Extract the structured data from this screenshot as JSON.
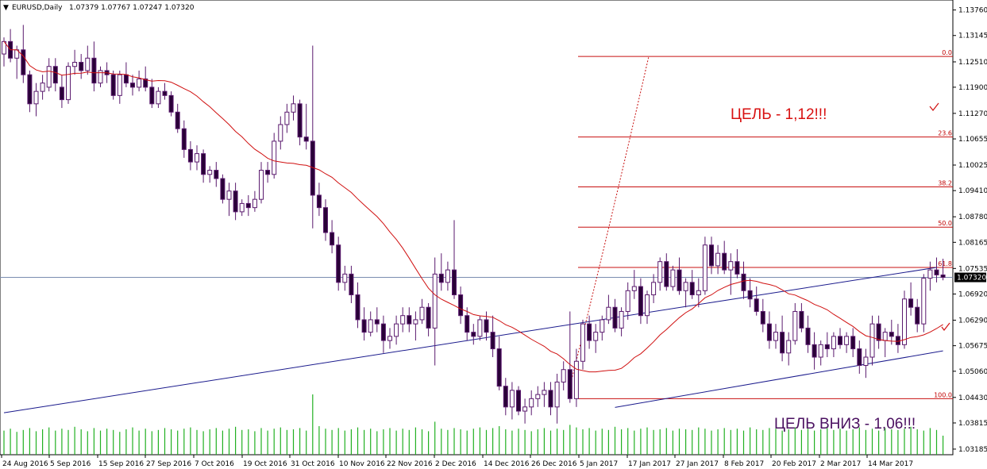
{
  "header": {
    "symbol_label": "EURUSD,Daily",
    "ohlc_label": "1.07379 1.07767 1.07247 1.07320",
    "colors": {
      "bull": "#ffffff",
      "bear": "#2a0038",
      "wick": "#5a1a6e",
      "ma": "#d01010",
      "channel": "#1a1a8c",
      "fib": "#c81010",
      "volume": "#22b022",
      "hline": "#7a8cb0"
    }
  },
  "annotations": {
    "target_up": "ЦЕЛЬ - 1,12!!!",
    "target_down": "ЦЕЛЬ ВНИЗ - 1,06!!!",
    "price_tag": "1.07320"
  },
  "chart_data": {
    "type": "candlestick",
    "title": "EURUSD,Daily",
    "ylim": [
      1.0305,
      1.14
    ],
    "y_ticks": [
      "1.13760",
      "1.13145",
      "1.12510",
      "1.11900",
      "1.11270",
      "1.10655",
      "1.10025",
      "1.09410",
      "1.08780",
      "1.08165",
      "1.07535",
      "1.06920",
      "1.06290",
      "1.05675",
      "1.05060",
      "1.04430",
      "1.03815",
      "1.03185"
    ],
    "x_ticks": [
      "24 Aug 2016",
      "5 Sep 2016",
      "15 Sep 2016",
      "27 Sep 2016",
      "7 Oct 2016",
      "19 Oct 2016",
      "31 Oct 2016",
      "10 Nov 2016",
      "22 Nov 2016",
      "2 Dec 2016",
      "14 Dec 2016",
      "26 Dec 2016",
      "5 Jan 2017",
      "17 Jan 2017",
      "27 Jan 2017",
      "8 Feb 2017",
      "20 Feb 2017",
      "2 Mar 2017",
      "14 Mar 2017"
    ],
    "candles": [
      [
        1.127,
        1.131,
        1.124,
        1.13
      ],
      [
        1.13,
        1.133,
        1.125,
        1.126
      ],
      [
        1.126,
        1.129,
        1.121,
        1.128
      ],
      [
        1.128,
        1.134,
        1.12,
        1.122
      ],
      [
        1.122,
        1.123,
        1.113,
        1.115
      ],
      [
        1.115,
        1.12,
        1.112,
        1.118
      ],
      [
        1.118,
        1.122,
        1.116,
        1.12
      ],
      [
        1.119,
        1.126,
        1.118,
        1.124
      ],
      [
        1.124,
        1.126,
        1.118,
        1.12
      ],
      [
        1.119,
        1.122,
        1.114,
        1.116
      ],
      [
        1.116,
        1.125,
        1.115,
        1.124
      ],
      [
        1.124,
        1.128,
        1.122,
        1.125
      ],
      [
        1.125,
        1.127,
        1.121,
        1.123
      ],
      [
        1.123,
        1.129,
        1.122,
        1.126
      ],
      [
        1.126,
        1.13,
        1.118,
        1.12
      ],
      [
        1.12,
        1.124,
        1.119,
        1.123
      ],
      [
        1.123,
        1.125,
        1.12,
        1.122
      ],
      [
        1.122,
        1.123,
        1.116,
        1.117
      ],
      [
        1.117,
        1.123,
        1.115,
        1.122
      ],
      [
        1.122,
        1.125,
        1.119,
        1.12
      ],
      [
        1.12,
        1.122,
        1.117,
        1.119
      ],
      [
        1.119,
        1.123,
        1.118,
        1.121
      ],
      [
        1.121,
        1.124,
        1.118,
        1.119
      ],
      [
        1.119,
        1.121,
        1.114,
        1.115
      ],
      [
        1.115,
        1.119,
        1.114,
        1.118
      ],
      [
        1.118,
        1.12,
        1.116,
        1.117
      ],
      [
        1.117,
        1.118,
        1.112,
        1.113
      ],
      [
        1.113,
        1.115,
        1.108,
        1.109
      ],
      [
        1.109,
        1.111,
        1.102,
        1.104
      ],
      [
        1.104,
        1.106,
        1.099,
        1.101
      ],
      [
        1.101,
        1.105,
        1.099,
        1.103
      ],
      [
        1.103,
        1.104,
        1.096,
        1.098
      ],
      [
        1.098,
        1.1,
        1.096,
        1.099
      ],
      [
        1.099,
        1.101,
        1.095,
        1.097
      ],
      [
        1.097,
        1.098,
        1.091,
        1.092
      ],
      [
        1.092,
        1.096,
        1.088,
        1.094
      ],
      [
        1.094,
        1.096,
        1.087,
        1.089
      ],
      [
        1.089,
        1.092,
        1.088,
        1.091
      ],
      [
        1.091,
        1.093,
        1.088,
        1.09
      ],
      [
        1.09,
        1.094,
        1.089,
        1.092
      ],
      [
        1.092,
        1.101,
        1.091,
        1.099
      ],
      [
        1.099,
        1.101,
        1.096,
        1.098
      ],
      [
        1.098,
        1.108,
        1.097,
        1.106
      ],
      [
        1.106,
        1.112,
        1.104,
        1.11
      ],
      [
        1.11,
        1.115,
        1.108,
        1.113
      ],
      [
        1.113,
        1.117,
        1.111,
        1.115
      ],
      [
        1.115,
        1.116,
        1.105,
        1.107
      ],
      [
        1.107,
        1.115,
        1.104,
        1.106
      ],
      [
        1.106,
        1.129,
        1.085,
        1.093
      ],
      [
        1.093,
        1.096,
        1.088,
        1.09
      ],
      [
        1.09,
        1.092,
        1.082,
        1.084
      ],
      [
        1.084,
        1.087,
        1.079,
        1.081
      ],
      [
        1.081,
        1.083,
        1.07,
        1.072
      ],
      [
        1.072,
        1.076,
        1.07,
        1.074
      ],
      [
        1.074,
        1.076,
        1.067,
        1.069
      ],
      [
        1.069,
        1.072,
        1.061,
        1.063
      ],
      [
        1.063,
        1.066,
        1.058,
        1.06
      ],
      [
        1.06,
        1.065,
        1.059,
        1.063
      ],
      [
        1.063,
        1.066,
        1.06,
        1.062
      ],
      [
        1.062,
        1.064,
        1.055,
        1.058
      ],
      [
        1.058,
        1.061,
        1.056,
        1.059
      ],
      [
        1.059,
        1.064,
        1.057,
        1.062
      ],
      [
        1.062,
        1.066,
        1.06,
        1.064
      ],
      [
        1.064,
        1.066,
        1.06,
        1.062
      ],
      [
        1.062,
        1.065,
        1.058,
        1.063
      ],
      [
        1.063,
        1.068,
        1.062,
        1.066
      ],
      [
        1.066,
        1.067,
        1.059,
        1.061
      ],
      [
        1.061,
        1.078,
        1.052,
        1.074
      ],
      [
        1.074,
        1.079,
        1.07,
        1.072
      ],
      [
        1.072,
        1.077,
        1.07,
        1.075
      ],
      [
        1.075,
        1.087,
        1.068,
        1.069
      ],
      [
        1.069,
        1.071,
        1.062,
        1.064
      ],
      [
        1.064,
        1.066,
        1.058,
        1.06
      ],
      [
        1.06,
        1.062,
        1.057,
        1.059
      ],
      [
        1.059,
        1.064,
        1.058,
        1.063
      ],
      [
        1.063,
        1.065,
        1.058,
        1.06
      ],
      [
        1.06,
        1.064,
        1.054,
        1.056
      ],
      [
        1.056,
        1.059,
        1.046,
        1.047
      ],
      [
        1.047,
        1.049,
        1.04,
        1.042
      ],
      [
        1.042,
        1.048,
        1.039,
        1.046
      ],
      [
        1.046,
        1.047,
        1.04,
        1.041
      ],
      [
        1.041,
        1.044,
        1.038,
        1.042
      ],
      [
        1.042,
        1.046,
        1.04,
        1.044
      ],
      [
        1.044,
        1.047,
        1.042,
        1.045
      ],
      [
        1.045,
        1.048,
        1.042,
        1.046
      ],
      [
        1.046,
        1.048,
        1.04,
        1.042
      ],
      [
        1.042,
        1.05,
        1.038,
        1.048
      ],
      [
        1.048,
        1.053,
        1.046,
        1.051
      ],
      [
        1.051,
        1.065,
        1.043,
        1.044
      ],
      [
        1.044,
        1.056,
        1.042,
        1.053
      ],
      [
        1.053,
        1.063,
        1.051,
        1.062
      ],
      [
        1.062,
        1.064,
        1.056,
        1.058
      ],
      [
        1.058,
        1.062,
        1.055,
        1.06
      ],
      [
        1.06,
        1.064,
        1.058,
        1.063
      ],
      [
        1.063,
        1.069,
        1.062,
        1.066
      ],
      [
        1.066,
        1.068,
        1.06,
        1.061
      ],
      [
        1.061,
        1.066,
        1.059,
        1.065
      ],
      [
        1.065,
        1.072,
        1.063,
        1.07
      ],
      [
        1.07,
        1.075,
        1.068,
        1.071
      ],
      [
        1.071,
        1.073,
        1.062,
        1.064
      ],
      [
        1.064,
        1.07,
        1.062,
        1.069
      ],
      [
        1.069,
        1.074,
        1.067,
        1.072
      ],
      [
        1.072,
        1.078,
        1.07,
        1.077
      ],
      [
        1.077,
        1.079,
        1.07,
        1.071
      ],
      [
        1.071,
        1.076,
        1.07,
        1.075
      ],
      [
        1.075,
        1.078,
        1.069,
        1.07
      ],
      [
        1.07,
        1.073,
        1.066,
        1.072
      ],
      [
        1.072,
        1.075,
        1.068,
        1.069
      ],
      [
        1.069,
        1.073,
        1.066,
        1.07
      ],
      [
        1.07,
        1.083,
        1.069,
        1.081
      ],
      [
        1.081,
        1.083,
        1.074,
        1.076
      ],
      [
        1.076,
        1.081,
        1.074,
        1.079
      ],
      [
        1.079,
        1.082,
        1.074,
        1.075
      ],
      [
        1.075,
        1.079,
        1.069,
        1.077
      ],
      [
        1.077,
        1.08,
        1.073,
        1.074
      ],
      [
        1.074,
        1.077,
        1.068,
        1.07
      ],
      [
        1.07,
        1.073,
        1.066,
        1.068
      ],
      [
        1.068,
        1.071,
        1.064,
        1.065
      ],
      [
        1.065,
        1.068,
        1.06,
        1.062
      ],
      [
        1.062,
        1.065,
        1.056,
        1.058
      ],
      [
        1.058,
        1.062,
        1.056,
        1.06
      ],
      [
        1.06,
        1.064,
        1.053,
        1.055
      ],
      [
        1.055,
        1.06,
        1.052,
        1.058
      ],
      [
        1.058,
        1.067,
        1.057,
        1.065
      ],
      [
        1.065,
        1.067,
        1.06,
        1.061
      ],
      [
        1.061,
        1.064,
        1.055,
        1.057
      ],
      [
        1.057,
        1.06,
        1.051,
        1.054
      ],
      [
        1.054,
        1.058,
        1.052,
        1.057
      ],
      [
        1.057,
        1.06,
        1.054,
        1.056
      ],
      [
        1.056,
        1.06,
        1.054,
        1.059
      ],
      [
        1.059,
        1.061,
        1.056,
        1.057
      ],
      [
        1.057,
        1.06,
        1.055,
        1.059
      ],
      [
        1.059,
        1.061,
        1.054,
        1.056
      ],
      [
        1.056,
        1.058,
        1.05,
        1.052
      ],
      [
        1.052,
        1.056,
        1.049,
        1.054
      ],
      [
        1.054,
        1.064,
        1.052,
        1.062
      ],
      [
        1.062,
        1.064,
        1.056,
        1.058
      ],
      [
        1.058,
        1.061,
        1.054,
        1.06
      ],
      [
        1.06,
        1.063,
        1.057,
        1.059
      ],
      [
        1.059,
        1.062,
        1.055,
        1.057
      ],
      [
        1.057,
        1.07,
        1.056,
        1.068
      ],
      [
        1.068,
        1.072,
        1.064,
        1.066
      ],
      [
        1.066,
        1.068,
        1.06,
        1.062
      ],
      [
        1.062,
        1.074,
        1.06,
        1.073
      ],
      [
        1.073,
        1.077,
        1.07,
        1.075
      ],
      [
        1.075,
        1.078,
        1.072,
        1.0738
      ],
      [
        1.0738,
        1.0777,
        1.0725,
        1.0732
      ]
    ],
    "volumes": [
      0.38,
      0.41,
      0.36,
      0.39,
      0.42,
      0.37,
      0.4,
      0.43,
      0.38,
      0.41,
      0.39,
      0.44,
      0.4,
      0.37,
      0.42,
      0.38,
      0.41,
      0.39,
      0.36,
      0.4,
      0.43,
      0.38,
      0.41,
      0.37,
      0.39,
      0.42,
      0.4,
      0.38,
      0.41,
      0.43,
      0.39,
      0.37,
      0.4,
      0.42,
      0.38,
      0.41,
      0.44,
      0.39,
      0.4,
      0.37,
      0.42,
      0.38,
      0.41,
      0.43,
      0.39,
      0.4,
      0.42,
      0.38,
      0.95,
      0.45,
      0.41,
      0.39,
      0.42,
      0.38,
      0.4,
      0.43,
      0.39,
      0.41,
      0.37,
      0.4,
      0.42,
      0.38,
      0.41,
      0.39,
      0.43,
      0.4,
      0.37,
      0.52,
      0.41,
      0.39,
      0.42,
      0.4,
      0.38,
      0.41,
      0.43,
      0.39,
      0.42,
      0.45,
      0.4,
      0.38,
      0.41,
      0.39,
      0.37,
      0.4,
      0.42,
      0.38,
      0.41,
      0.39,
      0.47,
      0.43,
      0.4,
      0.42,
      0.38,
      0.41,
      0.39,
      0.44,
      0.4,
      0.42,
      0.38,
      0.41,
      0.43,
      0.39,
      0.4,
      0.42,
      0.38,
      0.41,
      0.4,
      0.39,
      0.43,
      0.41,
      0.38,
      0.4,
      0.42,
      0.39,
      0.41,
      0.38,
      0.43,
      0.4,
      0.39,
      0.42,
      0.41,
      0.38,
      0.4,
      0.43,
      0.39,
      0.41,
      0.38,
      0.4,
      0.42,
      0.39,
      0.41,
      0.38,
      0.4,
      0.43,
      0.39,
      0.41,
      0.38,
      0.42,
      0.4,
      0.39,
      0.41,
      0.44,
      0.4,
      0.38,
      0.42,
      0.39,
      0.3
    ],
    "fibonacci": {
      "levels": [
        {
          "label": "0.0",
          "price": 1.1264
        },
        {
          "label": "23.6",
          "price": 1.107
        },
        {
          "label": "38.2",
          "price": 1.095
        },
        {
          "label": "50.0",
          "price": 1.0853
        },
        {
          "label": "61.8",
          "price": 1.0756
        },
        {
          "label": "100.0",
          "price": 1.044
        }
      ],
      "x_start_index": 100
    },
    "channel": {
      "upper": [
        [
          0,
          1.0406
        ],
        [
          145,
          1.0756
        ]
      ],
      "lower": [
        [
          95,
          1.0419
        ],
        [
          146,
          1.0555
        ]
      ]
    },
    "current_price": 1.0732,
    "ma_period": 20
  }
}
